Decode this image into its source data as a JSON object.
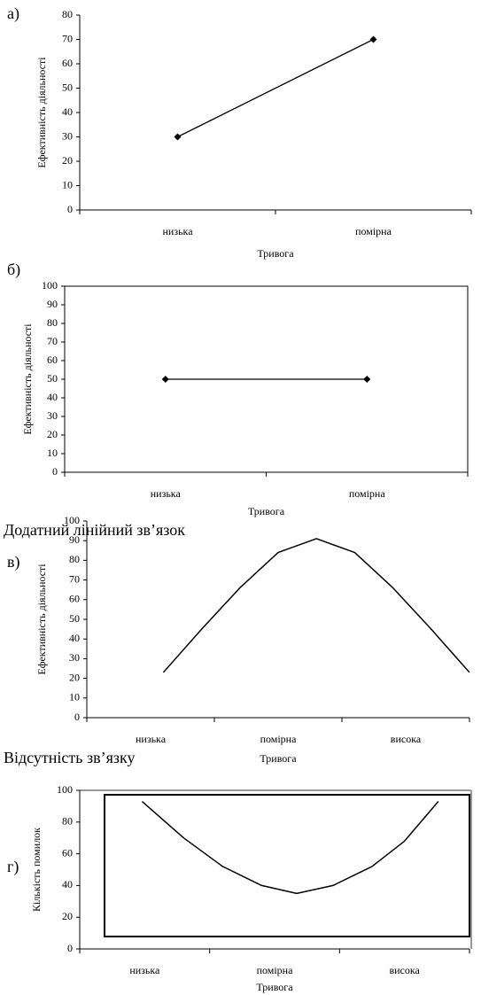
{
  "chart_data": [
    {
      "type": "line",
      "panel": "а)",
      "ylabel": "Ефективність діяльності",
      "xlabel": "Тривога",
      "categories": [
        "низька",
        "помірна"
      ],
      "values": [
        30,
        70
      ],
      "color": "#000000",
      "ylim": [
        0,
        80
      ],
      "yticks": [
        0,
        10,
        20,
        30,
        40,
        50,
        60,
        70,
        80
      ]
    },
    {
      "type": "line",
      "panel": "б)",
      "ylabel": "Ефективність діяльності",
      "xlabel": "Тривога",
      "categories": [
        "низька",
        "помірна"
      ],
      "values": [
        50,
        50
      ],
      "color": "#000000",
      "frame": true,
      "ylim": [
        0,
        100
      ],
      "yticks": [
        0,
        10,
        20,
        30,
        40,
        50,
        60,
        70,
        80,
        90,
        100
      ]
    },
    {
      "type": "curve",
      "panel": "в)",
      "ylabel": "Ефективність діяльності",
      "xlabel": "Тривога",
      "categories": [
        "низька",
        "помірна",
        "висока"
      ],
      "x": [
        0.6,
        0.9,
        1.2,
        1.5,
        1.8,
        2.1,
        2.4,
        2.7,
        3.0
      ],
      "values": [
        23,
        45,
        66,
        84,
        91,
        84,
        66,
        45,
        23
      ],
      "color": "#000000",
      "ylim": [
        0,
        100
      ],
      "yticks": [
        0,
        10,
        20,
        30,
        40,
        50,
        60,
        70,
        80,
        90,
        100
      ]
    },
    {
      "type": "curve",
      "panel": "г)",
      "ylabel": "Кількість помилок",
      "xlabel": "Тривога",
      "categories": [
        "низька",
        "помірна",
        "висока"
      ],
      "x": [
        0.48,
        0.8,
        1.1,
        1.4,
        1.67,
        1.95,
        2.25,
        2.5,
        2.76
      ],
      "values": [
        93,
        70,
        52,
        40,
        35,
        40,
        52,
        68,
        93
      ],
      "color": "#000000",
      "ylim": [
        0,
        100
      ],
      "yticks": [
        0,
        20,
        40,
        60,
        80,
        100
      ]
    }
  ],
  "captions": [
    "Додатний лінійний зв’язок",
    "Відсутність зв’язку"
  ]
}
